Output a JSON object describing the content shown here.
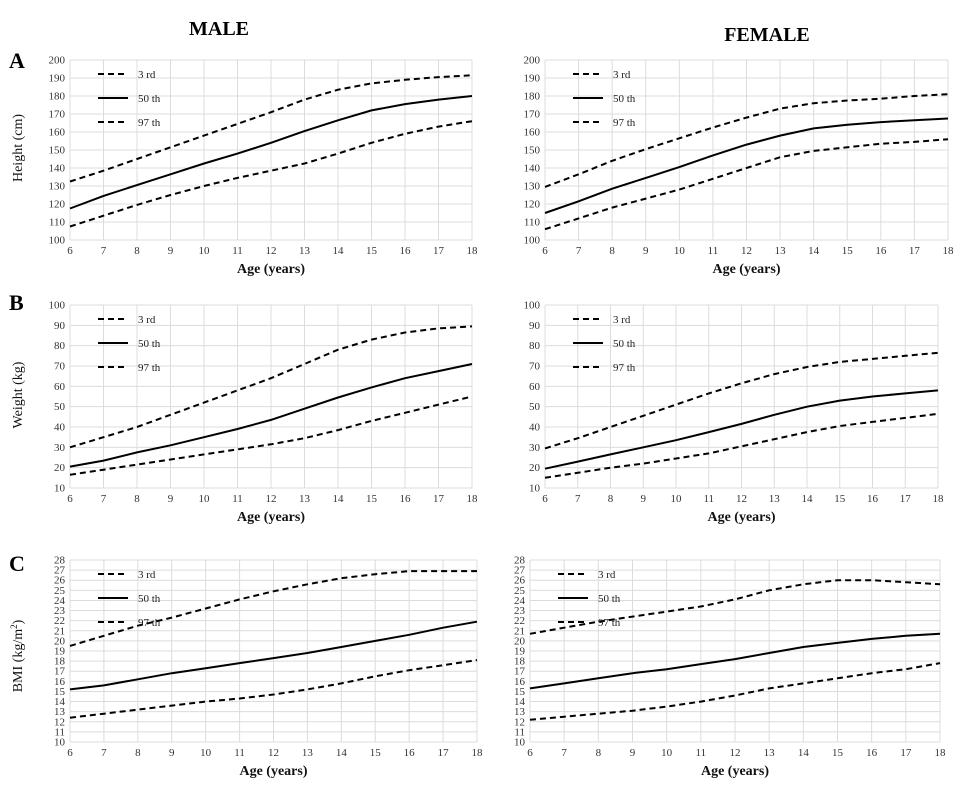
{
  "titles": {
    "male": "MALE",
    "female": "FEMALE"
  },
  "panels": [
    {
      "letter": "A",
      "ylabel_main": "Height (cm)",
      "ylabel_sup": ""
    },
    {
      "letter": "B",
      "ylabel_main": "Weight (kg)",
      "ylabel_sup": ""
    },
    {
      "letter": "C",
      "ylabel_main": "BMI (kg/m",
      "ylabel_sup": "2",
      "ylabel_tail": ")"
    }
  ],
  "chart_data": [
    {
      "type": "line",
      "sex": "male",
      "panel": "A",
      "title": "",
      "xlabel": "Age (years)",
      "ylabel": "Height (cm)",
      "xlim": [
        6,
        18
      ],
      "ylim": [
        100,
        200
      ],
      "ytick_step": 10,
      "x": [
        6,
        7,
        8,
        9,
        10,
        11,
        12,
        13,
        14,
        15,
        16,
        17,
        18
      ],
      "series": [
        {
          "name": "3 rd",
          "dash": "dashed",
          "values": [
            132.5,
            138.5,
            145,
            151.5,
            158,
            164.5,
            171,
            178,
            183.5,
            187,
            189,
            190.5,
            191.5
          ]
        },
        {
          "name": "50 th",
          "dash": "solid",
          "values": [
            117.5,
            124.5,
            130.5,
            136.5,
            142.5,
            148,
            154,
            160.5,
            166.5,
            172,
            175.5,
            178,
            180
          ]
        },
        {
          "name": "97 th",
          "dash": "dashed",
          "values": [
            107.5,
            113.5,
            119.5,
            125,
            130,
            134.5,
            138.5,
            142.5,
            148,
            154,
            159,
            163,
            166
          ]
        }
      ],
      "legend": "top-left",
      "grid": true
    },
    {
      "type": "line",
      "sex": "female",
      "panel": "A",
      "title": "",
      "xlabel": "Age (years)",
      "ylabel": "Height (cm)",
      "xlim": [
        6,
        18
      ],
      "ylim": [
        100,
        200
      ],
      "ytick_step": 10,
      "x": [
        6,
        7,
        8,
        9,
        10,
        11,
        12,
        13,
        14,
        15,
        16,
        17,
        18
      ],
      "series": [
        {
          "name": "3 rd",
          "dash": "dashed",
          "values": [
            129.5,
            136.5,
            144,
            150.5,
            156.5,
            162.5,
            168,
            173,
            176,
            177.5,
            178.5,
            180,
            181
          ]
        },
        {
          "name": "50 th",
          "dash": "solid",
          "values": [
            115,
            121.5,
            128.5,
            134.5,
            140.5,
            147,
            153,
            158,
            162,
            164,
            165.5,
            166.5,
            167.5
          ]
        },
        {
          "name": "97 th",
          "dash": "dashed",
          "values": [
            106,
            112,
            118,
            123,
            128,
            134,
            140,
            146,
            149.5,
            151.5,
            153.5,
            154.5,
            156
          ]
        }
      ],
      "legend": "top-left",
      "grid": true
    },
    {
      "type": "line",
      "sex": "male",
      "panel": "B",
      "title": "",
      "xlabel": "Age (years)",
      "ylabel": "Weight (kg)",
      "xlim": [
        6,
        18
      ],
      "ylim": [
        10,
        100
      ],
      "ytick_step": 10,
      "x": [
        6,
        7,
        8,
        9,
        10,
        11,
        12,
        13,
        14,
        15,
        16,
        17,
        18
      ],
      "series": [
        {
          "name": "3 rd",
          "dash": "dashed",
          "values": [
            30,
            35,
            40,
            46,
            52,
            58,
            64,
            71,
            78,
            83,
            86.5,
            88.5,
            89.5
          ]
        },
        {
          "name": "50 th",
          "dash": "solid",
          "values": [
            20.5,
            23.5,
            27.5,
            31,
            35,
            39,
            43.5,
            49,
            54.5,
            59.5,
            64,
            67.5,
            71
          ]
        },
        {
          "name": "97 th",
          "dash": "dashed",
          "values": [
            16.5,
            19,
            21.5,
            24,
            26.5,
            29,
            31.5,
            34.5,
            38.5,
            43,
            47,
            51,
            55
          ]
        }
      ],
      "legend": "top-left",
      "grid": true
    },
    {
      "type": "line",
      "sex": "female",
      "panel": "B",
      "title": "",
      "xlabel": "Age (years)",
      "ylabel": "Weight (kg)",
      "xlim": [
        6,
        18
      ],
      "ylim": [
        10,
        100
      ],
      "ytick_step": 10,
      "x": [
        6,
        7,
        8,
        9,
        10,
        11,
        12,
        13,
        14,
        15,
        16,
        17,
        18
      ],
      "series": [
        {
          "name": "3 rd",
          "dash": "dashed",
          "values": [
            29.5,
            34.5,
            40,
            45.5,
            51,
            56.5,
            61.5,
            66,
            69.5,
            72,
            73.5,
            75,
            76.5
          ]
        },
        {
          "name": "50 th",
          "dash": "solid",
          "values": [
            19.5,
            23,
            26.5,
            30,
            33.5,
            37.5,
            41.5,
            46,
            50,
            53,
            55,
            56.5,
            58
          ]
        },
        {
          "name": "97 th",
          "dash": "dashed",
          "values": [
            15,
            17.5,
            20,
            22,
            24.5,
            27,
            30.5,
            34,
            37.5,
            40.5,
            42.5,
            44.5,
            46.5
          ]
        }
      ],
      "legend": "top-left",
      "grid": true
    },
    {
      "type": "line",
      "sex": "male",
      "panel": "C",
      "title": "",
      "xlabel": "Age (years)",
      "ylabel": "BMI (kg/m2)",
      "xlim": [
        6,
        18
      ],
      "ylim": [
        10,
        28
      ],
      "ytick_step": 1,
      "x": [
        6,
        7,
        8,
        9,
        10,
        11,
        12,
        13,
        14,
        15,
        16,
        17,
        18
      ],
      "series": [
        {
          "name": "3 rd",
          "dash": "dashed",
          "values": [
            19.5,
            20.5,
            21.5,
            22.3,
            23.2,
            24.1,
            24.9,
            25.6,
            26.2,
            26.6,
            26.9,
            26.9,
            26.9
          ]
        },
        {
          "name": "50 th",
          "dash": "solid",
          "values": [
            15.2,
            15.6,
            16.2,
            16.8,
            17.3,
            17.8,
            18.3,
            18.8,
            19.4,
            20.0,
            20.6,
            21.3,
            21.9
          ]
        },
        {
          "name": "97 th",
          "dash": "dashed",
          "values": [
            12.4,
            12.8,
            13.2,
            13.6,
            14.0,
            14.3,
            14.7,
            15.2,
            15.8,
            16.5,
            17.1,
            17.6,
            18.1
          ]
        }
      ],
      "legend": "top-left",
      "grid": true
    },
    {
      "type": "line",
      "sex": "female",
      "panel": "C",
      "title": "",
      "xlabel": "Age (years)",
      "ylabel": "BMI (kg/m2)",
      "xlim": [
        6,
        18
      ],
      "ylim": [
        10,
        28
      ],
      "ytick_step": 1,
      "x": [
        6,
        7,
        8,
        9,
        10,
        11,
        12,
        13,
        14,
        15,
        16,
        17,
        18
      ],
      "series": [
        {
          "name": "3 rd",
          "dash": "dashed",
          "values": [
            20.7,
            21.3,
            21.9,
            22.4,
            22.9,
            23.4,
            24.1,
            25.0,
            25.6,
            26.0,
            26.0,
            25.8,
            25.6
          ]
        },
        {
          "name": "50 th",
          "dash": "solid",
          "values": [
            15.3,
            15.8,
            16.3,
            16.8,
            17.2,
            17.7,
            18.2,
            18.8,
            19.4,
            19.8,
            20.2,
            20.5,
            20.7
          ]
        },
        {
          "name": "97 th",
          "dash": "dashed",
          "values": [
            12.2,
            12.5,
            12.8,
            13.1,
            13.5,
            14.0,
            14.6,
            15.3,
            15.8,
            16.3,
            16.8,
            17.2,
            17.8
          ]
        }
      ],
      "legend": "top-left",
      "grid": true
    }
  ]
}
